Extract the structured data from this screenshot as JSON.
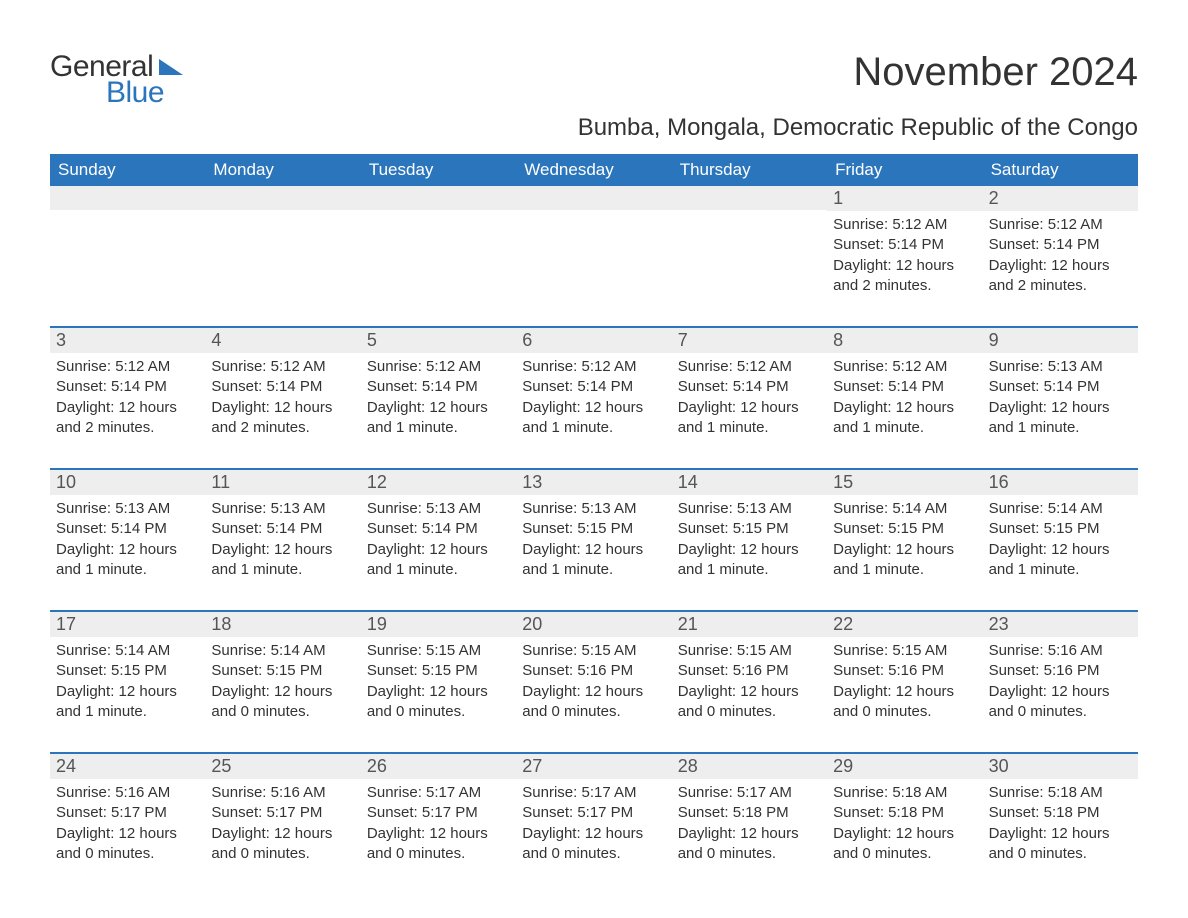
{
  "logo": {
    "text1": "General",
    "text2": "Blue"
  },
  "title": "November 2024",
  "subtitle": "Bumba, Mongala, Democratic Republic of the Congo",
  "colors": {
    "header_bg": "#2a75bb",
    "header_text": "#ffffff",
    "daynum_bg": "#eeeeee",
    "border": "#2a75bb",
    "body_bg": "#ffffff",
    "text": "#333333"
  },
  "day_headers": [
    "Sunday",
    "Monday",
    "Tuesday",
    "Wednesday",
    "Thursday",
    "Friday",
    "Saturday"
  ],
  "weeks": [
    [
      {
        "empty": true
      },
      {
        "empty": true
      },
      {
        "empty": true
      },
      {
        "empty": true
      },
      {
        "empty": true
      },
      {
        "day": "1",
        "sunrise": "Sunrise: 5:12 AM",
        "sunset": "Sunset: 5:14 PM",
        "daylight": "Daylight: 12 hours and 2 minutes."
      },
      {
        "day": "2",
        "sunrise": "Sunrise: 5:12 AM",
        "sunset": "Sunset: 5:14 PM",
        "daylight": "Daylight: 12 hours and 2 minutes."
      }
    ],
    [
      {
        "day": "3",
        "sunrise": "Sunrise: 5:12 AM",
        "sunset": "Sunset: 5:14 PM",
        "daylight": "Daylight: 12 hours and 2 minutes."
      },
      {
        "day": "4",
        "sunrise": "Sunrise: 5:12 AM",
        "sunset": "Sunset: 5:14 PM",
        "daylight": "Daylight: 12 hours and 2 minutes."
      },
      {
        "day": "5",
        "sunrise": "Sunrise: 5:12 AM",
        "sunset": "Sunset: 5:14 PM",
        "daylight": "Daylight: 12 hours and 1 minute."
      },
      {
        "day": "6",
        "sunrise": "Sunrise: 5:12 AM",
        "sunset": "Sunset: 5:14 PM",
        "daylight": "Daylight: 12 hours and 1 minute."
      },
      {
        "day": "7",
        "sunrise": "Sunrise: 5:12 AM",
        "sunset": "Sunset: 5:14 PM",
        "daylight": "Daylight: 12 hours and 1 minute."
      },
      {
        "day": "8",
        "sunrise": "Sunrise: 5:12 AM",
        "sunset": "Sunset: 5:14 PM",
        "daylight": "Daylight: 12 hours and 1 minute."
      },
      {
        "day": "9",
        "sunrise": "Sunrise: 5:13 AM",
        "sunset": "Sunset: 5:14 PM",
        "daylight": "Daylight: 12 hours and 1 minute."
      }
    ],
    [
      {
        "day": "10",
        "sunrise": "Sunrise: 5:13 AM",
        "sunset": "Sunset: 5:14 PM",
        "daylight": "Daylight: 12 hours and 1 minute."
      },
      {
        "day": "11",
        "sunrise": "Sunrise: 5:13 AM",
        "sunset": "Sunset: 5:14 PM",
        "daylight": "Daylight: 12 hours and 1 minute."
      },
      {
        "day": "12",
        "sunrise": "Sunrise: 5:13 AM",
        "sunset": "Sunset: 5:14 PM",
        "daylight": "Daylight: 12 hours and 1 minute."
      },
      {
        "day": "13",
        "sunrise": "Sunrise: 5:13 AM",
        "sunset": "Sunset: 5:15 PM",
        "daylight": "Daylight: 12 hours and 1 minute."
      },
      {
        "day": "14",
        "sunrise": "Sunrise: 5:13 AM",
        "sunset": "Sunset: 5:15 PM",
        "daylight": "Daylight: 12 hours and 1 minute."
      },
      {
        "day": "15",
        "sunrise": "Sunrise: 5:14 AM",
        "sunset": "Sunset: 5:15 PM",
        "daylight": "Daylight: 12 hours and 1 minute."
      },
      {
        "day": "16",
        "sunrise": "Sunrise: 5:14 AM",
        "sunset": "Sunset: 5:15 PM",
        "daylight": "Daylight: 12 hours and 1 minute."
      }
    ],
    [
      {
        "day": "17",
        "sunrise": "Sunrise: 5:14 AM",
        "sunset": "Sunset: 5:15 PM",
        "daylight": "Daylight: 12 hours and 1 minute."
      },
      {
        "day": "18",
        "sunrise": "Sunrise: 5:14 AM",
        "sunset": "Sunset: 5:15 PM",
        "daylight": "Daylight: 12 hours and 0 minutes."
      },
      {
        "day": "19",
        "sunrise": "Sunrise: 5:15 AM",
        "sunset": "Sunset: 5:15 PM",
        "daylight": "Daylight: 12 hours and 0 minutes."
      },
      {
        "day": "20",
        "sunrise": "Sunrise: 5:15 AM",
        "sunset": "Sunset: 5:16 PM",
        "daylight": "Daylight: 12 hours and 0 minutes."
      },
      {
        "day": "21",
        "sunrise": "Sunrise: 5:15 AM",
        "sunset": "Sunset: 5:16 PM",
        "daylight": "Daylight: 12 hours and 0 minutes."
      },
      {
        "day": "22",
        "sunrise": "Sunrise: 5:15 AM",
        "sunset": "Sunset: 5:16 PM",
        "daylight": "Daylight: 12 hours and 0 minutes."
      },
      {
        "day": "23",
        "sunrise": "Sunrise: 5:16 AM",
        "sunset": "Sunset: 5:16 PM",
        "daylight": "Daylight: 12 hours and 0 minutes."
      }
    ],
    [
      {
        "day": "24",
        "sunrise": "Sunrise: 5:16 AM",
        "sunset": "Sunset: 5:17 PM",
        "daylight": "Daylight: 12 hours and 0 minutes."
      },
      {
        "day": "25",
        "sunrise": "Sunrise: 5:16 AM",
        "sunset": "Sunset: 5:17 PM",
        "daylight": "Daylight: 12 hours and 0 minutes."
      },
      {
        "day": "26",
        "sunrise": "Sunrise: 5:17 AM",
        "sunset": "Sunset: 5:17 PM",
        "daylight": "Daylight: 12 hours and 0 minutes."
      },
      {
        "day": "27",
        "sunrise": "Sunrise: 5:17 AM",
        "sunset": "Sunset: 5:17 PM",
        "daylight": "Daylight: 12 hours and 0 minutes."
      },
      {
        "day": "28",
        "sunrise": "Sunrise: 5:17 AM",
        "sunset": "Sunset: 5:18 PM",
        "daylight": "Daylight: 12 hours and 0 minutes."
      },
      {
        "day": "29",
        "sunrise": "Sunrise: 5:18 AM",
        "sunset": "Sunset: 5:18 PM",
        "daylight": "Daylight: 12 hours and 0 minutes."
      },
      {
        "day": "30",
        "sunrise": "Sunrise: 5:18 AM",
        "sunset": "Sunset: 5:18 PM",
        "daylight": "Daylight: 12 hours and 0 minutes."
      }
    ]
  ]
}
